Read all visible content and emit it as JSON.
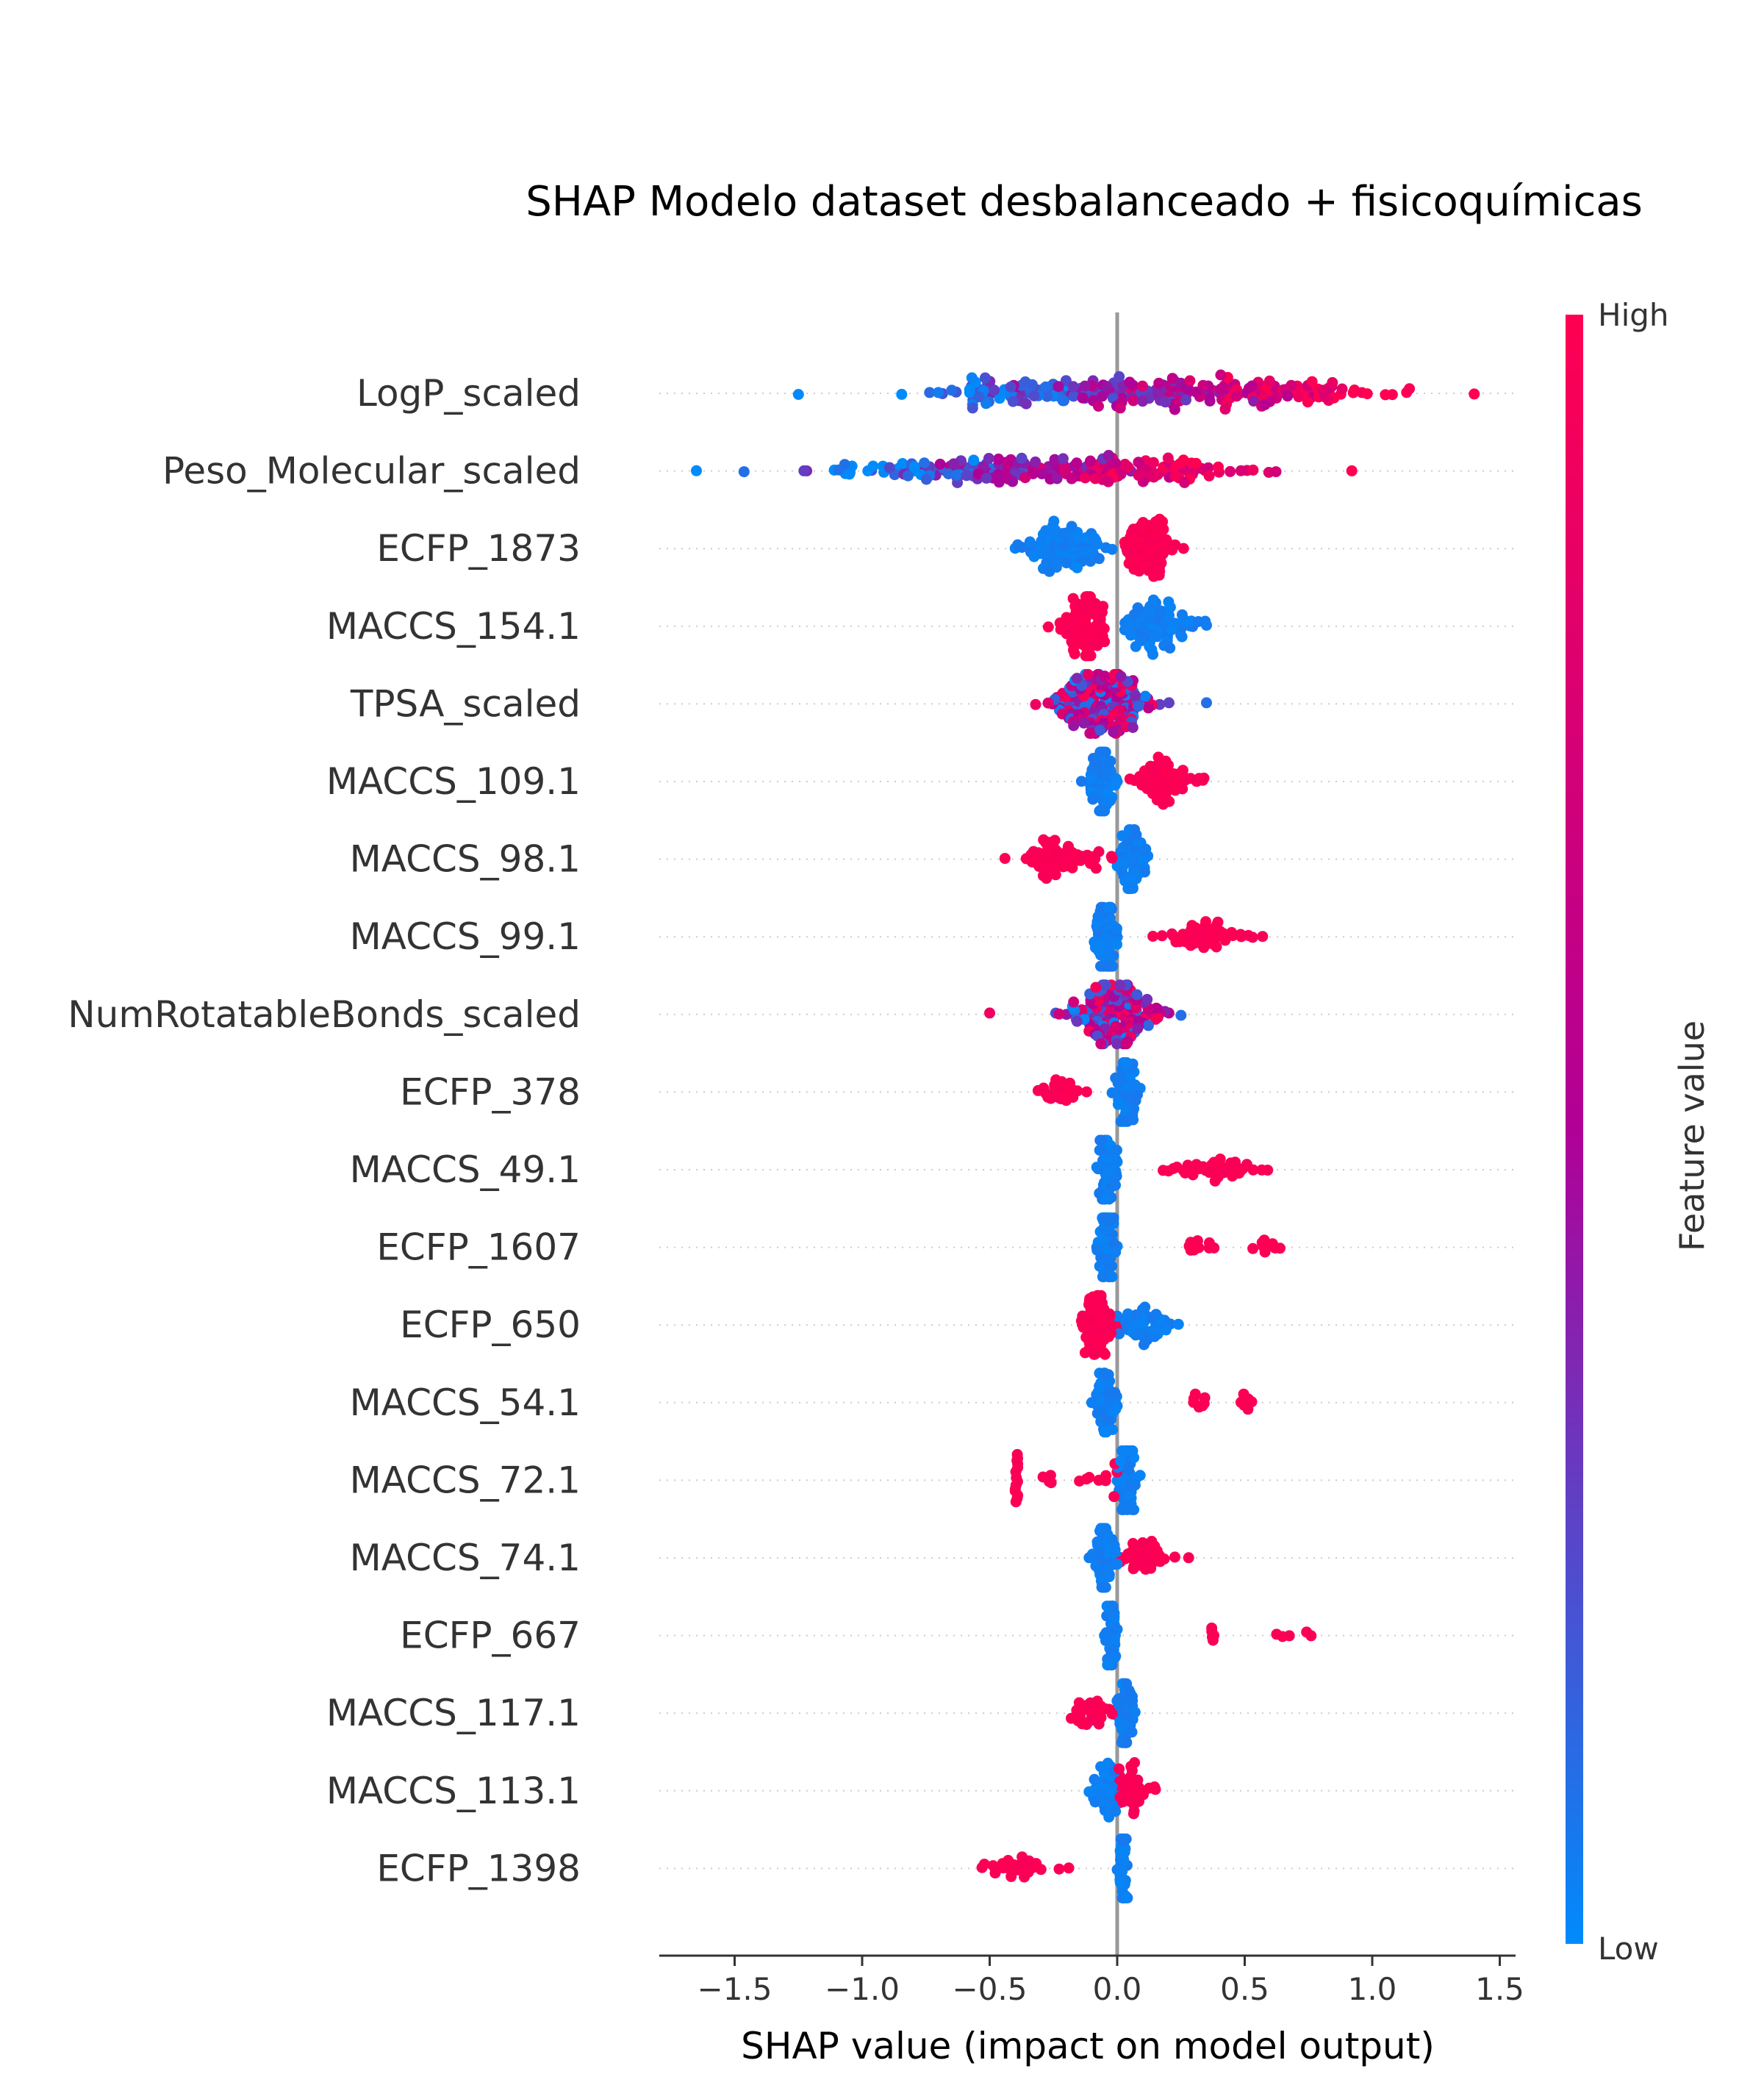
{
  "chart_data": {
    "type": "scatter",
    "subtype": "shap-beeswarm",
    "title": "SHAP Modelo dataset desbalanceado + fisicoquímicas",
    "xlabel": "SHAP value (impact on model output)",
    "xlim": [
      -1.8,
      1.55
    ],
    "xticks": [
      -1.5,
      -1.0,
      -0.5,
      0.0,
      0.5,
      1.0,
      1.5
    ],
    "xtick_labels": [
      "−1.5",
      "−1.0",
      "−0.5",
      "0.0",
      "0.5",
      "1.0",
      "1.5"
    ],
    "colorbar": {
      "label": "Feature value",
      "high_label": "High",
      "low_label": "Low",
      "low_color": "#008bfb",
      "high_color": "#ff0052"
    },
    "features": [
      {
        "name": "LogP_scaled",
        "pattern": "continuous",
        "min": -1.25,
        "max": 1.4,
        "center_low": -0.6,
        "center_high": 0.85,
        "count": 260
      },
      {
        "name": "Peso_Molecular_scaled",
        "pattern": "continuous",
        "min": -1.65,
        "max": 0.92,
        "center_low": -1.0,
        "center_high": 0.35,
        "count": 230
      },
      {
        "name": "ECFP_1873",
        "pattern": "binary",
        "low_range": [
          -0.4,
          -0.02
        ],
        "low_center": -0.2,
        "high_range": [
          0.03,
          0.26
        ],
        "high_center": 0.12,
        "low_count": 90,
        "high_count": 80
      },
      {
        "name": "MACCS_154.1",
        "pattern": "binary",
        "low_range": [
          0.03,
          0.35
        ],
        "low_center": 0.15,
        "high_range": [
          -0.27,
          -0.05
        ],
        "high_center": -0.12,
        "low_count": 80,
        "high_count": 90
      },
      {
        "name": "TPSA_scaled",
        "pattern": "mixed",
        "min": -0.32,
        "max": 0.35,
        "center": -0.05,
        "count": 170
      },
      {
        "name": "MACCS_109.1",
        "pattern": "binary",
        "low_range": [
          -0.14,
          0.0
        ],
        "low_center": -0.06,
        "high_range": [
          0.05,
          0.34
        ],
        "high_center": 0.18,
        "low_count": 60,
        "high_count": 60
      },
      {
        "name": "MACCS_98.1",
        "pattern": "binary",
        "low_range": [
          0.0,
          0.12
        ],
        "low_center": 0.06,
        "high_range": [
          -0.44,
          -0.02
        ],
        "high_center": -0.25,
        "low_count": 60,
        "high_count": 60
      },
      {
        "name": "MACCS_99.1",
        "pattern": "binary",
        "low_range": [
          -0.09,
          0.0
        ],
        "low_center": -0.04,
        "high_range": [
          0.14,
          0.57
        ],
        "high_center": 0.35,
        "low_count": 60,
        "high_count": 50
      },
      {
        "name": "NumRotatableBonds_scaled",
        "pattern": "mixed",
        "min": -0.5,
        "max": 0.25,
        "center": 0.0,
        "count": 150
      },
      {
        "name": "ECFP_378",
        "pattern": "binary",
        "low_range": [
          -0.02,
          0.09
        ],
        "low_center": 0.04,
        "high_range": [
          -0.31,
          -0.12
        ],
        "high_center": -0.22,
        "low_count": 50,
        "high_count": 25
      },
      {
        "name": "MACCS_49.1",
        "pattern": "binary",
        "low_range": [
          -0.08,
          0.0
        ],
        "low_center": -0.04,
        "high_range": [
          0.18,
          0.59
        ],
        "high_center": 0.38,
        "low_count": 50,
        "high_count": 40
      },
      {
        "name": "ECFP_1607",
        "pattern": "clusters",
        "low_range": [
          -0.08,
          0.0
        ],
        "low_center": -0.04,
        "high_clusters": [
          [
            0.28,
            0.38
          ],
          [
            0.53,
            0.67
          ]
        ],
        "low_count": 50,
        "high_count": 20
      },
      {
        "name": "ECFP_650",
        "pattern": "binary",
        "low_range": [
          0.0,
          0.24
        ],
        "low_center": 0.08,
        "high_range": [
          -0.14,
          0.0
        ],
        "high_center": -0.07,
        "low_count": 45,
        "high_count": 65
      },
      {
        "name": "MACCS_54.1",
        "pattern": "clusters",
        "low_range": [
          -0.1,
          0.0
        ],
        "low_center": -0.04,
        "high_clusters": [
          [
            0.28,
            0.44
          ],
          [
            0.48,
            0.53
          ]
        ],
        "low_count": 50,
        "high_count": 14
      },
      {
        "name": "MACCS_72.1",
        "pattern": "clusters",
        "low_range": [
          0.0,
          0.09
        ],
        "low_center": 0.04,
        "high_clusters": [
          [
            -0.4,
            -0.39
          ],
          [
            -0.3,
            0.0
          ]
        ],
        "low_count": 50,
        "high_count": 28
      },
      {
        "name": "MACCS_74.1",
        "pattern": "binary",
        "low_range": [
          -0.11,
          0.0
        ],
        "low_center": -0.05,
        "high_range": [
          0.01,
          0.28
        ],
        "high_center": 0.1,
        "low_count": 50,
        "high_count": 40
      },
      {
        "name": "ECFP_667",
        "pattern": "clusters",
        "low_range": [
          -0.05,
          0.0
        ],
        "low_center": -0.02,
        "high_clusters": [
          [
            0.37,
            0.38
          ],
          [
            0.58,
            0.77
          ]
        ],
        "low_count": 40,
        "high_count": 10
      },
      {
        "name": "MACCS_117.1",
        "pattern": "binary",
        "low_range": [
          -0.01,
          0.07
        ],
        "low_center": 0.03,
        "high_range": [
          -0.18,
          -0.02
        ],
        "high_center": -0.1,
        "low_count": 50,
        "high_count": 30
      },
      {
        "name": "MACCS_113.1",
        "pattern": "binary",
        "low_range": [
          -0.11,
          0.0
        ],
        "low_center": -0.04,
        "high_range": [
          0.0,
          0.15
        ],
        "high_center": 0.05,
        "low_count": 40,
        "high_count": 40
      },
      {
        "name": "ECFP_1398",
        "pattern": "binary",
        "low_range": [
          0.0,
          0.04
        ],
        "low_center": 0.02,
        "high_range": [
          -0.53,
          -0.19
        ],
        "high_center": -0.4,
        "low_count": 40,
        "high_count": 28
      }
    ]
  }
}
